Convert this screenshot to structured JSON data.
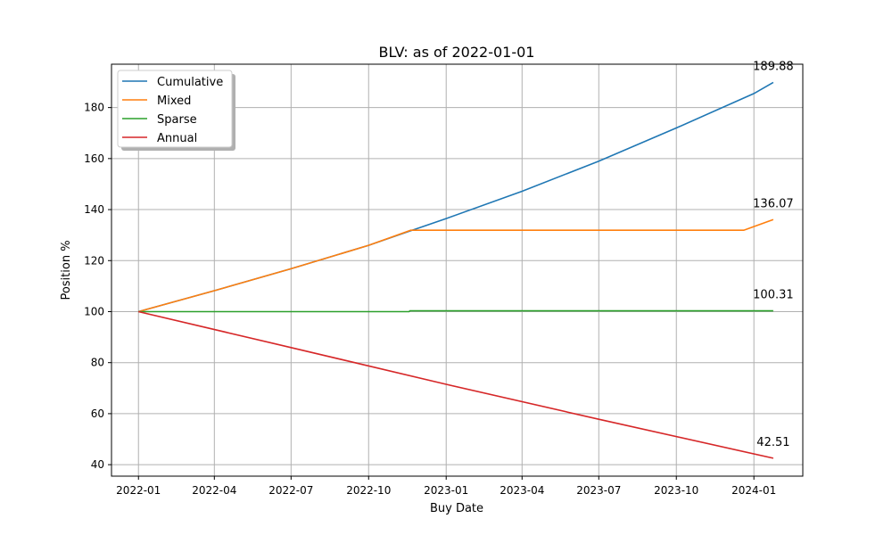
{
  "chart_data": {
    "type": "line",
    "title": "BLV: as of 2022-01-01",
    "xlabel": "Buy Date",
    "ylabel": "Position %",
    "grid": true,
    "legend_position": "top-left",
    "xlim": [
      "2021-11-30",
      "2024-02-28"
    ],
    "ylim": [
      35.5,
      197.0
    ],
    "x_ticks": [
      "2022-01",
      "2022-04",
      "2022-07",
      "2022-10",
      "2023-01",
      "2023-04",
      "2023-07",
      "2023-10",
      "2024-01"
    ],
    "y_ticks": [
      40,
      60,
      80,
      100,
      120,
      140,
      160,
      180
    ],
    "series": [
      {
        "name": "Cumulative",
        "color": "#1f77b4",
        "end_label": "189.88",
        "points": [
          {
            "x": "2022-01-01",
            "y": 100.0
          },
          {
            "x": "2022-04-01",
            "y": 108.2
          },
          {
            "x": "2022-07-01",
            "y": 116.8
          },
          {
            "x": "2022-10-01",
            "y": 126.0
          },
          {
            "x": "2022-11-20",
            "y": 131.7
          },
          {
            "x": "2023-01-01",
            "y": 136.5
          },
          {
            "x": "2023-04-01",
            "y": 147.2
          },
          {
            "x": "2023-07-01",
            "y": 159.0
          },
          {
            "x": "2023-10-01",
            "y": 172.0
          },
          {
            "x": "2024-01-01",
            "y": 185.5
          },
          {
            "x": "2024-01-24",
            "y": 189.88
          }
        ]
      },
      {
        "name": "Mixed",
        "color": "#ff7f0e",
        "end_label": "136.07",
        "points": [
          {
            "x": "2022-01-01",
            "y": 100.0
          },
          {
            "x": "2022-04-01",
            "y": 108.2
          },
          {
            "x": "2022-07-01",
            "y": 116.8
          },
          {
            "x": "2022-10-01",
            "y": 126.0
          },
          {
            "x": "2022-11-20",
            "y": 131.9
          },
          {
            "x": "2023-06-01",
            "y": 131.9
          },
          {
            "x": "2023-12-20",
            "y": 131.9
          },
          {
            "x": "2024-01-24",
            "y": 136.07
          }
        ]
      },
      {
        "name": "Sparse",
        "color": "#2ca02c",
        "end_label": "100.31",
        "points": [
          {
            "x": "2022-01-01",
            "y": 100.0
          },
          {
            "x": "2022-11-18",
            "y": 100.0
          },
          {
            "x": "2022-11-19",
            "y": 100.3
          },
          {
            "x": "2023-06-01",
            "y": 100.3
          },
          {
            "x": "2024-01-24",
            "y": 100.31
          }
        ]
      },
      {
        "name": "Annual",
        "color": "#d62728",
        "end_label": "42.51",
        "points": [
          {
            "x": "2022-01-01",
            "y": 100.0
          },
          {
            "x": "2022-07-01",
            "y": 85.9
          },
          {
            "x": "2023-01-01",
            "y": 71.5
          },
          {
            "x": "2023-07-01",
            "y": 57.8
          },
          {
            "x": "2024-01-24",
            "y": 42.51
          }
        ]
      }
    ]
  }
}
